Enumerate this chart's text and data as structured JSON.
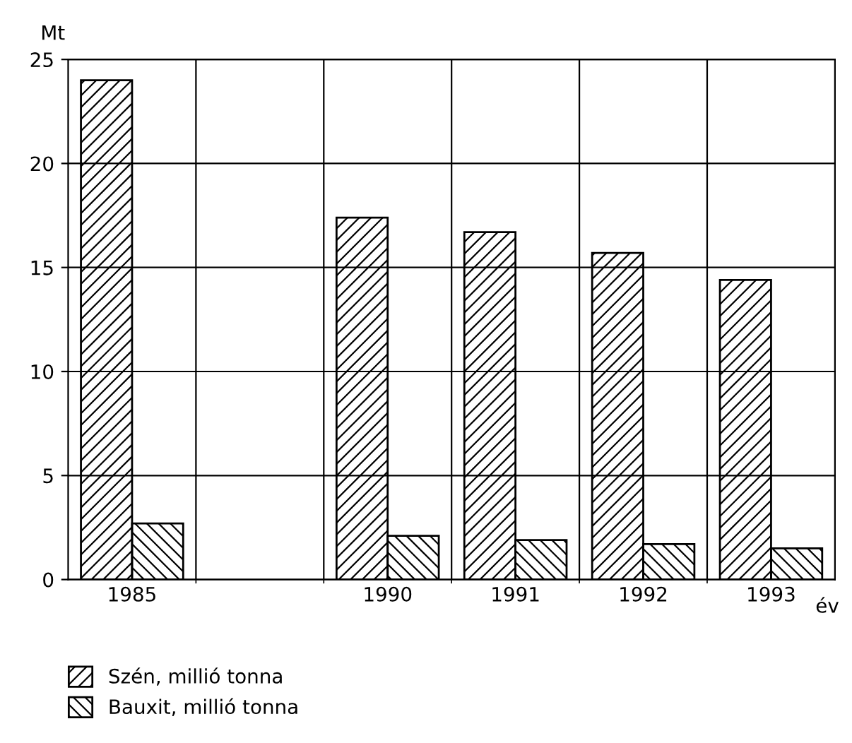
{
  "chart_data": {
    "type": "bar",
    "ylabel": "Mt",
    "xlabel": "év",
    "categories": [
      "1985",
      null,
      "1990",
      "1991",
      "1992",
      "1993"
    ],
    "series": [
      {
        "name": "Szén, millió tonna",
        "color": "#000000",
        "values": [
          24.0,
          null,
          17.4,
          16.7,
          15.7,
          14.4
        ]
      },
      {
        "name": "Bauxit, millió tonna",
        "color": "#000000",
        "values": [
          2.7,
          null,
          2.1,
          1.9,
          1.7,
          1.5
        ]
      }
    ],
    "ylim": [
      0,
      25
    ],
    "yticks": [
      0,
      5,
      10,
      15,
      20,
      25
    ],
    "grid": true,
    "legend": "bottom left"
  }
}
